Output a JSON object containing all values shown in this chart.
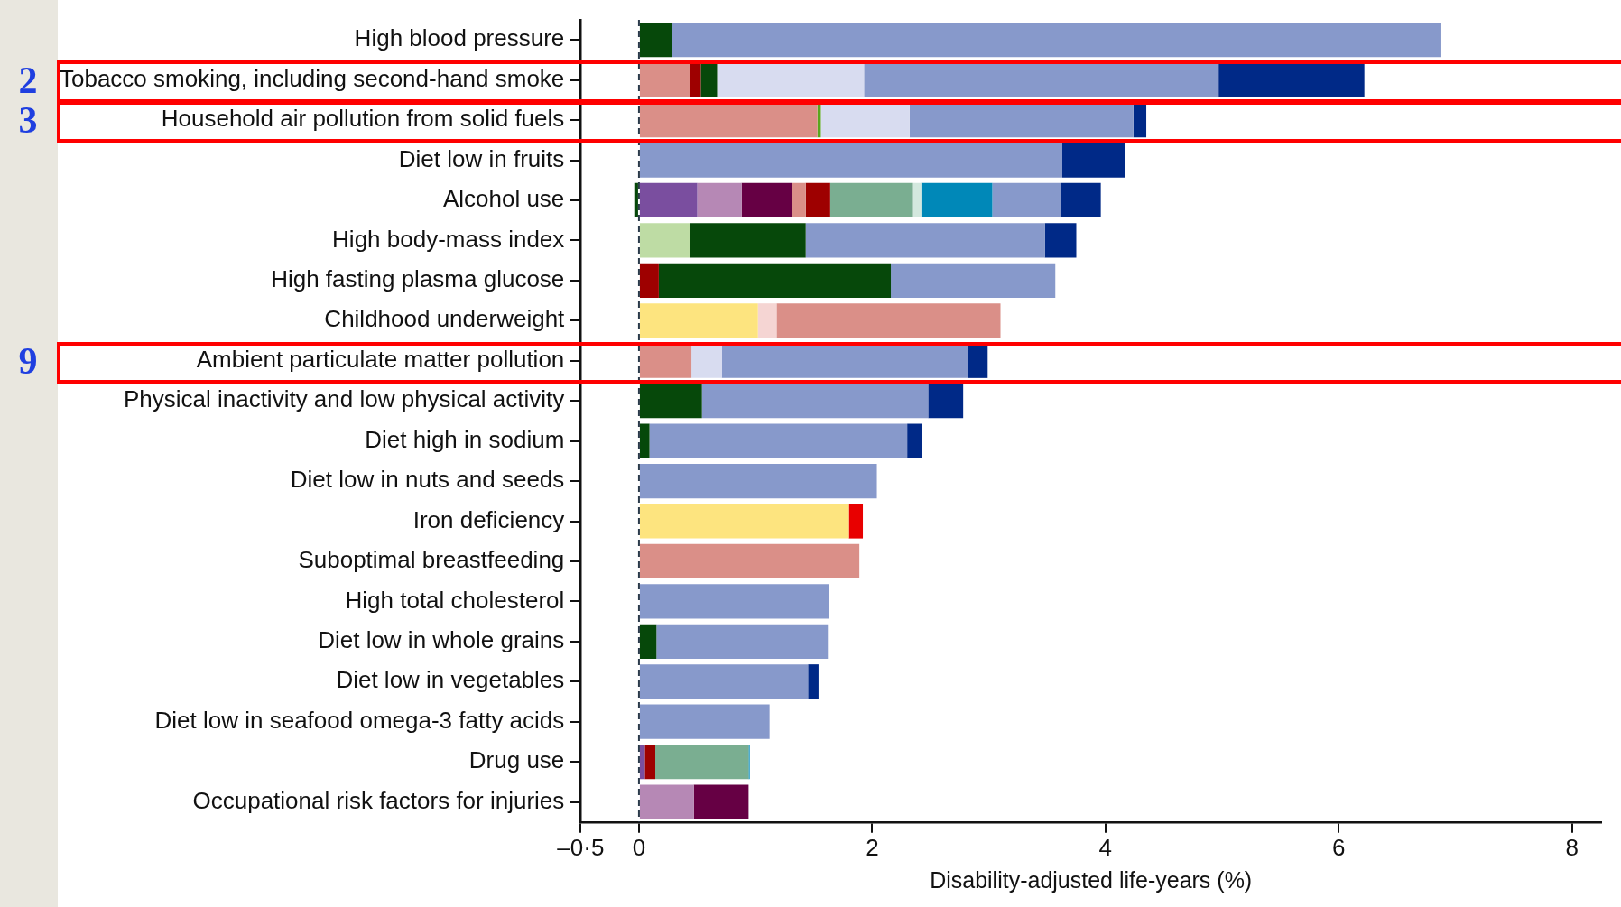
{
  "chart_data": {
    "type": "bar",
    "orientation": "horizontal",
    "stacked": true,
    "xlabel": "Disability-adjusted life-years (%)",
    "categories": [
      "High blood pressure",
      "Tobacco smoking, including second-hand smoke",
      "Household air pollution from solid fuels",
      "Diet low in fruits",
      "Alcohol use",
      "High body-mass index",
      "High fasting plasma glucose",
      "Childhood underweight",
      "Ambient particulate matter pollution",
      "Physical inactivity and low physical activity",
      "Diet high in sodium",
      "Diet low in nuts and seeds",
      "Iron deficiency",
      "Suboptimal breastfeeding",
      "High total cholesterol",
      "Diet low in whole grains",
      "Diet low in vegetables",
      "Diet low in seafood omega-3 fatty acids",
      "Drug use",
      "Occupational risk factors for injuries"
    ],
    "series": [
      {
        "color": "#fde47f",
        "values": [
          null,
          null,
          null,
          null,
          null,
          null,
          null,
          1.02,
          null,
          null,
          null,
          null,
          1.8,
          null,
          null,
          null,
          null,
          null,
          null,
          null
        ]
      },
      {
        "color": "#f5d5d3",
        "values": [
          null,
          null,
          null,
          null,
          null,
          null,
          null,
          0.16,
          null,
          null,
          null,
          null,
          null,
          null,
          null,
          null,
          null,
          null,
          null,
          null
        ]
      },
      {
        "color": "#7a4e9f",
        "values": [
          null,
          null,
          null,
          null,
          0.5,
          null,
          null,
          null,
          null,
          null,
          null,
          null,
          null,
          null,
          null,
          null,
          null,
          null,
          0.05,
          null
        ]
      },
      {
        "color": "#b688b5",
        "values": [
          null,
          null,
          null,
          null,
          0.38,
          null,
          null,
          null,
          null,
          null,
          null,
          null,
          null,
          null,
          null,
          null,
          null,
          null,
          null,
          0.47
        ]
      },
      {
        "color": "#660044",
        "values": [
          null,
          null,
          null,
          null,
          0.43,
          null,
          null,
          null,
          null,
          null,
          null,
          null,
          null,
          null,
          null,
          null,
          null,
          null,
          null,
          0.47
        ]
      },
      {
        "color": "#da8f88",
        "values": [
          null,
          0.44,
          1.53,
          null,
          0.12,
          null,
          null,
          1.92,
          0.45,
          null,
          null,
          null,
          null,
          1.89,
          null,
          null,
          null,
          null,
          null,
          null
        ]
      },
      {
        "color": "#9e0000",
        "values": [
          null,
          0.09,
          null,
          null,
          0.21,
          null,
          0.17,
          null,
          null,
          null,
          null,
          null,
          null,
          null,
          null,
          null,
          null,
          null,
          0.09,
          null
        ]
      },
      {
        "color": "#e80000",
        "values": [
          null,
          null,
          null,
          null,
          null,
          null,
          null,
          null,
          null,
          null,
          null,
          null,
          0.12,
          null,
          null,
          null,
          null,
          null,
          null,
          null
        ]
      },
      {
        "color": "#bedca4",
        "values": [
          null,
          null,
          null,
          null,
          null,
          0.44,
          null,
          null,
          null,
          null,
          null,
          null,
          null,
          null,
          null,
          null,
          null,
          null,
          null,
          null
        ]
      },
      {
        "color": "#5aa51e",
        "values": [
          null,
          null,
          0.03,
          null,
          null,
          null,
          null,
          null,
          null,
          null,
          null,
          null,
          null,
          null,
          null,
          null,
          null,
          null,
          null,
          null
        ]
      },
      {
        "color": "#06480a",
        "values": [
          0.28,
          0.14,
          null,
          null,
          -0.04,
          0.99,
          1.99,
          null,
          null,
          0.54,
          0.09,
          null,
          null,
          null,
          null,
          0.15,
          null,
          null,
          null,
          null
        ]
      },
      {
        "color": "#7aae91",
        "values": [
          null,
          null,
          null,
          null,
          0.71,
          null,
          null,
          null,
          null,
          null,
          null,
          null,
          null,
          null,
          null,
          null,
          null,
          null,
          0.8,
          null
        ]
      },
      {
        "color": "#d3e8de",
        "values": [
          null,
          null,
          null,
          null,
          0.07,
          null,
          null,
          null,
          null,
          null,
          null,
          null,
          null,
          null,
          null,
          null,
          null,
          null,
          null,
          null
        ]
      },
      {
        "color": "#0088b8",
        "values": [
          null,
          null,
          null,
          null,
          0.61,
          null,
          null,
          null,
          null,
          null,
          null,
          null,
          null,
          null,
          null,
          null,
          null,
          null,
          0.01,
          null
        ]
      },
      {
        "color": "#d8dcf0",
        "values": [
          null,
          1.26,
          0.76,
          null,
          null,
          null,
          null,
          null,
          0.26,
          null,
          null,
          null,
          null,
          null,
          null,
          null,
          null,
          null,
          null,
          null
        ]
      },
      {
        "color": "#8799cb",
        "values": [
          6.6,
          3.04,
          1.92,
          3.63,
          0.59,
          2.05,
          1.41,
          null,
          2.11,
          1.94,
          2.21,
          2.04,
          null,
          null,
          1.63,
          1.47,
          1.45,
          1.12,
          null,
          null
        ]
      },
      {
        "color": "#002987",
        "values": [
          null,
          1.25,
          0.11,
          0.54,
          0.34,
          0.27,
          null,
          null,
          0.17,
          0.3,
          0.13,
          null,
          null,
          null,
          null,
          null,
          0.09,
          null,
          null,
          null
        ]
      }
    ],
    "xlim": [
      -0.5,
      8.25
    ],
    "xticks": [
      {
        "value": -0.5,
        "label": "–0·5"
      },
      0,
      2,
      4,
      6,
      8
    ],
    "ref_lines": [
      {
        "axis": "x",
        "value": 0,
        "color": "#2a3a4a",
        "line_style": "dashed"
      }
    ],
    "annotations": [
      "2",
      "3",
      "9"
    ],
    "grid": false,
    "legend": false
  }
}
